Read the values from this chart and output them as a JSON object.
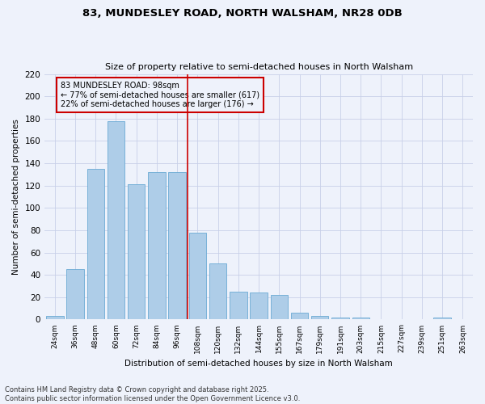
{
  "title_line1": "83, MUNDESLEY ROAD, NORTH WALSHAM, NR28 0DB",
  "title_line2": "Size of property relative to semi-detached houses in North Walsham",
  "xlabel": "Distribution of semi-detached houses by size in North Walsham",
  "ylabel": "Number of semi-detached properties",
  "categories": [
    "24sqm",
    "36sqm",
    "48sqm",
    "60sqm",
    "72sqm",
    "84sqm",
    "96sqm",
    "108sqm",
    "120sqm",
    "132sqm",
    "144sqm",
    "155sqm",
    "167sqm",
    "179sqm",
    "191sqm",
    "203sqm",
    "215sqm",
    "227sqm",
    "239sqm",
    "251sqm",
    "263sqm"
  ],
  "values": [
    3,
    45,
    135,
    178,
    121,
    132,
    132,
    78,
    50,
    25,
    24,
    22,
    6,
    3,
    2,
    2,
    0,
    0,
    0,
    2,
    0
  ],
  "bar_color": "#aecde8",
  "bar_edge_color": "#6aaad4",
  "vline_color": "#cc0000",
  "annotation_text": "83 MUNDESLEY ROAD: 98sqm\n← 77% of semi-detached houses are smaller (617)\n22% of semi-detached houses are larger (176) →",
  "annotation_box_color": "#cc0000",
  "ylim": [
    0,
    220
  ],
  "yticks": [
    0,
    20,
    40,
    60,
    80,
    100,
    120,
    140,
    160,
    180,
    200,
    220
  ],
  "footnote": "Contains HM Land Registry data © Crown copyright and database right 2025.\nContains public sector information licensed under the Open Government Licence v3.0.",
  "bg_color": "#eef2fb",
  "grid_color": "#c8d0e8"
}
